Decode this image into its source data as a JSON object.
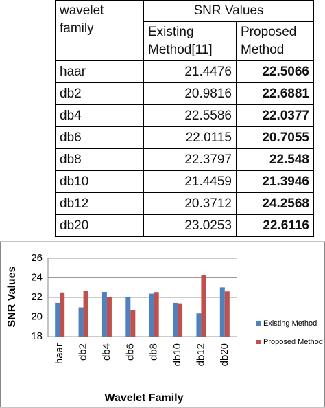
{
  "table": {
    "header": {
      "first": "wavelet family",
      "group": "SNR Values",
      "columns": [
        "Existing Method[11]",
        "Proposed Method"
      ]
    },
    "rows": [
      [
        "haar",
        "21.4476",
        "22.5066"
      ],
      [
        "db2",
        "20.9816",
        "22.6881"
      ],
      [
        "db4",
        "22.5586",
        "22.0377"
      ],
      [
        "db6",
        "22.0115",
        "20.7055"
      ],
      [
        "db8",
        "22.3797",
        "22.548"
      ],
      [
        "db10",
        "21.4459",
        "21.3946"
      ],
      [
        "db12",
        "20.3712",
        "24.2568"
      ],
      [
        "db20",
        "23.0253",
        "22.6116"
      ]
    ]
  },
  "chart_data": {
    "type": "bar",
    "x_label": "Wavelet Family",
    "y_label": "SNR Values",
    "categories": [
      "haar",
      "db2",
      "db4",
      "db6",
      "db8",
      "db10",
      "db12",
      "db20"
    ],
    "series": [
      {
        "name": "Existing Method",
        "color": "#4f81bd",
        "values": [
          21.4476,
          20.9816,
          22.5586,
          22.0115,
          22.3797,
          21.4459,
          20.3712,
          23.0253
        ]
      },
      {
        "name": "Proposed Method",
        "color": "#c0504d",
        "values": [
          22.5066,
          22.6881,
          22.0377,
          20.7055,
          22.548,
          21.3946,
          24.2568,
          22.6116
        ]
      }
    ],
    "ylim": [
      18,
      26
    ],
    "yticks": [
      18,
      20,
      22,
      24,
      26
    ],
    "grid": true,
    "legend": "right"
  }
}
